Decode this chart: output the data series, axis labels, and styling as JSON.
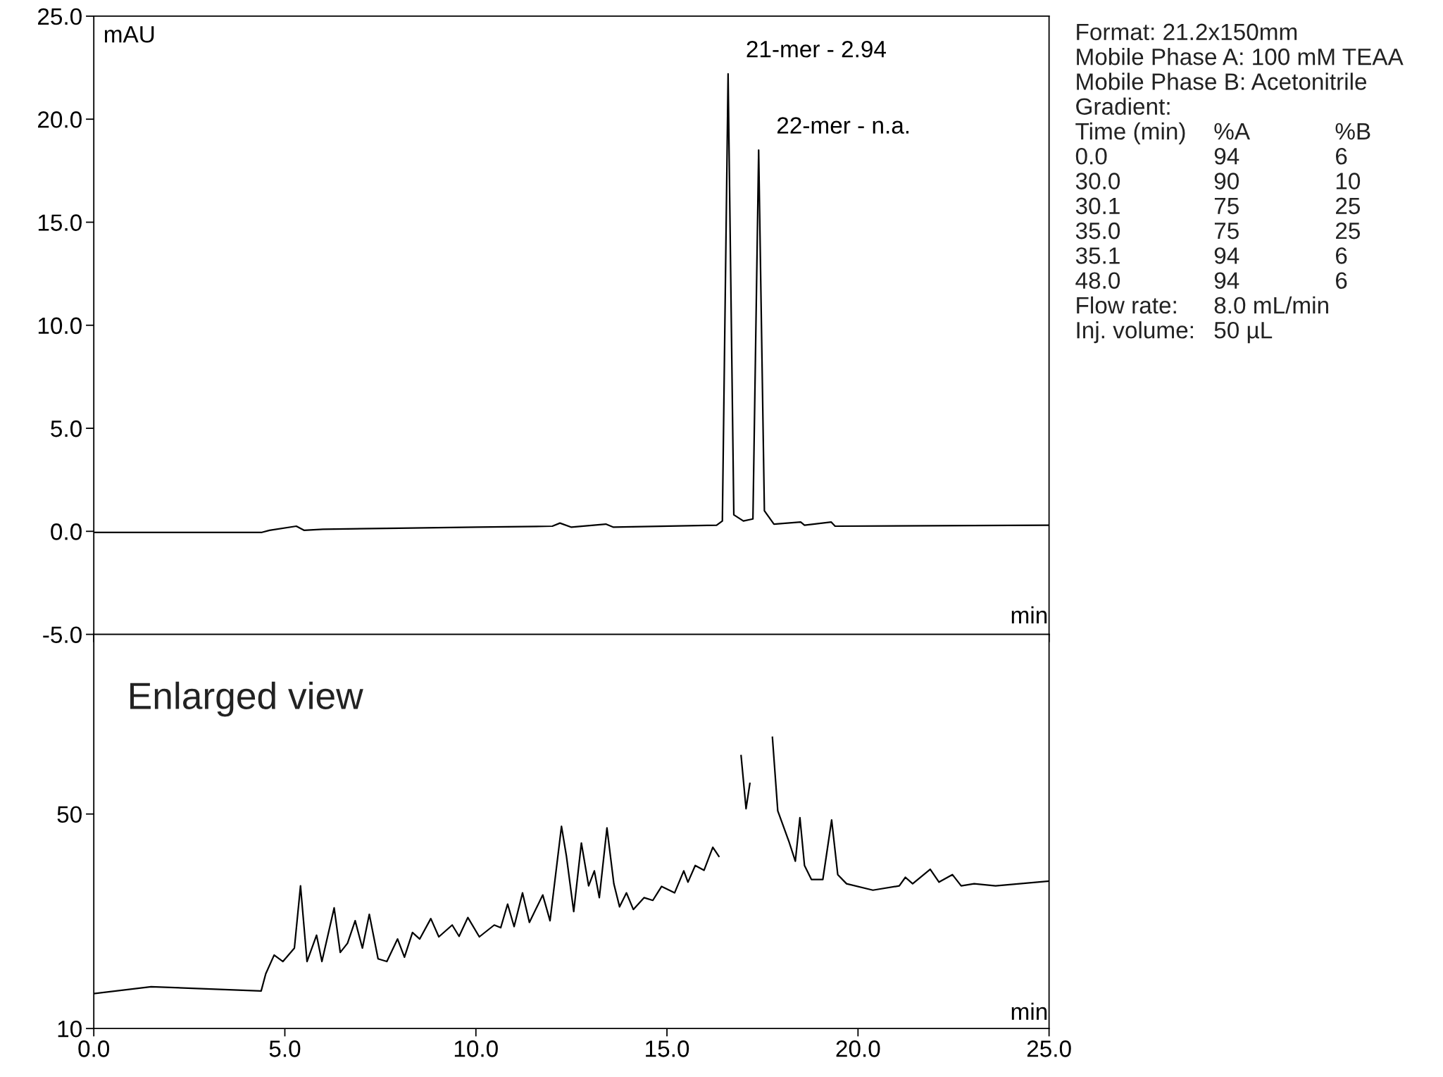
{
  "chart_data": [
    {
      "type": "line",
      "ylabel": "mAU",
      "xlim": [
        0,
        25
      ],
      "ylim": [
        -5,
        25
      ],
      "tick_labels": "y",
      "xticks": [
        {
          "value": 0,
          "label": null
        },
        {
          "value": 5,
          "label": null
        },
        {
          "value": 10,
          "label": null
        },
        {
          "value": 15,
          "label": null
        },
        {
          "value": 20,
          "label": null
        },
        {
          "value": 25,
          "label": null
        }
      ],
      "yticks": [
        {
          "value": -5,
          "label": "-5.0"
        },
        {
          "value": 0,
          "label": "0.0"
        },
        {
          "value": 5,
          "label": "5.0"
        },
        {
          "value": 10,
          "label": "10.0"
        },
        {
          "value": 15,
          "label": "15.0"
        },
        {
          "value": 20,
          "label": "20.0"
        },
        {
          "value": 25,
          "label": "25.0"
        }
      ],
      "grid": false,
      "marker": "none",
      "line_style": "solid",
      "series": [
        {
          "color": "#000000",
          "x": [
            0,
            4.4,
            4.6,
            5.3,
            5.5,
            6,
            8,
            10,
            12,
            12.2,
            12.5,
            13.4,
            13.6,
            16.3,
            16.45,
            16.6,
            16.75,
            17.0,
            17.25,
            17.4,
            17.55,
            17.8,
            18.5,
            18.6,
            19.3,
            19.4,
            25
          ],
          "values": [
            -0.05,
            -0.05,
            0.05,
            0.25,
            0.05,
            0.1,
            0.15,
            0.2,
            0.25,
            0.4,
            0.2,
            0.35,
            0.2,
            0.3,
            0.5,
            22.2,
            0.8,
            0.5,
            0.6,
            18.5,
            1.0,
            0.35,
            0.45,
            0.3,
            0.45,
            0.25,
            0.3
          ]
        }
      ],
      "annotations": [
        {
          "text": "21-mer - 2.94",
          "x": 16.6,
          "y": 22.2
        },
        {
          "text": "22-mer - n.a.",
          "x": 17.4,
          "y": 18.5
        },
        "min"
      ]
    },
    {
      "type": "line",
      "xlim": [
        0,
        25
      ],
      "ylim": [
        10,
        83.5
      ],
      "xticks": [
        {
          "value": 0,
          "label": "0.0"
        },
        {
          "value": 5,
          "label": "5.0"
        },
        {
          "value": 10,
          "label": "10.0"
        },
        {
          "value": 15,
          "label": "15.0"
        },
        {
          "value": 20,
          "label": "20.0"
        },
        {
          "value": 25,
          "label": "25.0"
        }
      ],
      "yticks": [
        10,
        50
      ],
      "grid": false,
      "marker": "none",
      "line_style": "solid",
      "series": [
        {
          "color": "#000000",
          "x": [
            0,
            1.5,
            4.38,
            4.5,
            4.72,
            4.95,
            5.25,
            5.41,
            5.58,
            5.83,
            5.97,
            6.29,
            6.45,
            6.64,
            6.84,
            7.03,
            7.21,
            7.44,
            7.67,
            7.95,
            8.13,
            8.34,
            8.53,
            8.82,
            9.03,
            9.38,
            9.56,
            9.79,
            10.09,
            10.48,
            10.65,
            10.83,
            11.0,
            11.22,
            11.4,
            11.75,
            11.94,
            12.24,
            12.37,
            12.56,
            12.76,
            12.95,
            13.1,
            13.23,
            13.43,
            13.61,
            13.76,
            13.94,
            14.12,
            14.4,
            14.63,
            14.86,
            15.2,
            15.44,
            15.55,
            15.74,
            15.97,
            16.2,
            16.36,
            16.47,
            16.84,
            16.94,
            17.07,
            17.17,
            17.26,
            17.67,
            17.76,
            17.9,
            18.2,
            18.36,
            18.48,
            18.6,
            18.78,
            19.08,
            19.31,
            19.47,
            19.7,
            20.39,
            21.08,
            21.24,
            21.43,
            21.89,
            22.12,
            22.47,
            22.7,
            23.04,
            23.6,
            25.0
          ],
          "values": [
            16.5,
            17.8,
            17.0,
            20.2,
            23.7,
            22.5,
            25.0,
            36.6,
            22.5,
            27.4,
            22.5,
            32.5,
            24.2,
            25.9,
            30.1,
            25.0,
            31.3,
            23.0,
            22.5,
            26.7,
            23.3,
            27.9,
            26.7,
            30.5,
            27.1,
            29.3,
            27.2,
            30.7,
            27.1,
            29.3,
            28.8,
            33.2,
            29.0,
            35.3,
            29.8,
            34.9,
            30.1,
            47.7,
            42.1,
            31.8,
            44.6,
            36.6,
            39.4,
            34.4,
            47.4,
            37.0,
            32.7,
            35.3,
            32.2,
            34.4,
            33.9,
            36.5,
            35.3,
            39.4,
            37.3,
            40.4,
            39.5,
            43.8,
            42.1,
            null,
            null,
            60.9,
            51.0,
            55.7,
            null,
            null,
            64.3,
            50.6,
            44.7,
            41.2,
            49.3,
            40.4,
            37.8,
            37.8,
            48.9,
            38.7,
            37.0,
            35.8,
            36.6,
            38.2,
            37.0,
            39.7,
            37.3,
            38.7,
            36.6,
            37.0,
            36.6,
            37.5
          ]
        }
      ],
      "annotations": [
        "Enlarged view",
        "min"
      ]
    },
    {
      "type": "other",
      "annotations": [
        "Format: 21.2x150mm",
        "Mobile Phase A: 100 mM TEAA",
        "Mobile Phase B: Acetonitrile",
        "Gradient:",
        "Time (min)\t%A\t%B",
        "0.0\t94\t6",
        "30.0\t90\t10",
        "30.1\t75\t25",
        "35.0\t75\t25",
        "35.1\t94\t6",
        "48.0\t94\t6",
        "Flow rate:\t8.0 mL/min",
        "Inj. volume:\t50 µL"
      ]
    }
  ]
}
